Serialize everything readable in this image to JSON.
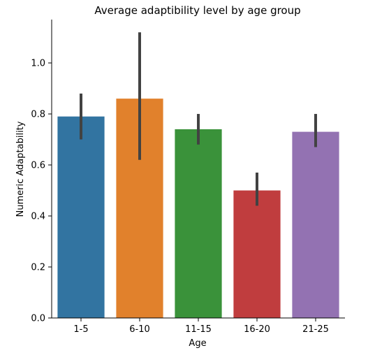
{
  "chart_data": {
    "type": "bar",
    "title": "Average adaptibility level by age group",
    "xlabel": "Age",
    "ylabel": "Numeric Adaptability",
    "categories": [
      "1-5",
      "6-10",
      "11-15",
      "16-20",
      "21-25"
    ],
    "values": [
      0.79,
      0.86,
      0.74,
      0.5,
      0.73
    ],
    "error_low": [
      0.7,
      0.62,
      0.68,
      0.44,
      0.67
    ],
    "error_high": [
      0.88,
      1.12,
      0.8,
      0.57,
      0.8
    ],
    "colors": [
      "#3274a1",
      "#e1812c",
      "#3a923a",
      "#c03d3e",
      "#9372b2"
    ],
    "ylim": [
      0,
      1.17
    ],
    "yticks": [
      0.0,
      0.2,
      0.4,
      0.6,
      0.8,
      1.0
    ],
    "ytick_labels": [
      "0.0",
      "0.2",
      "0.4",
      "0.6",
      "0.8",
      "1.0"
    ],
    "grid": false,
    "legend": false
  }
}
